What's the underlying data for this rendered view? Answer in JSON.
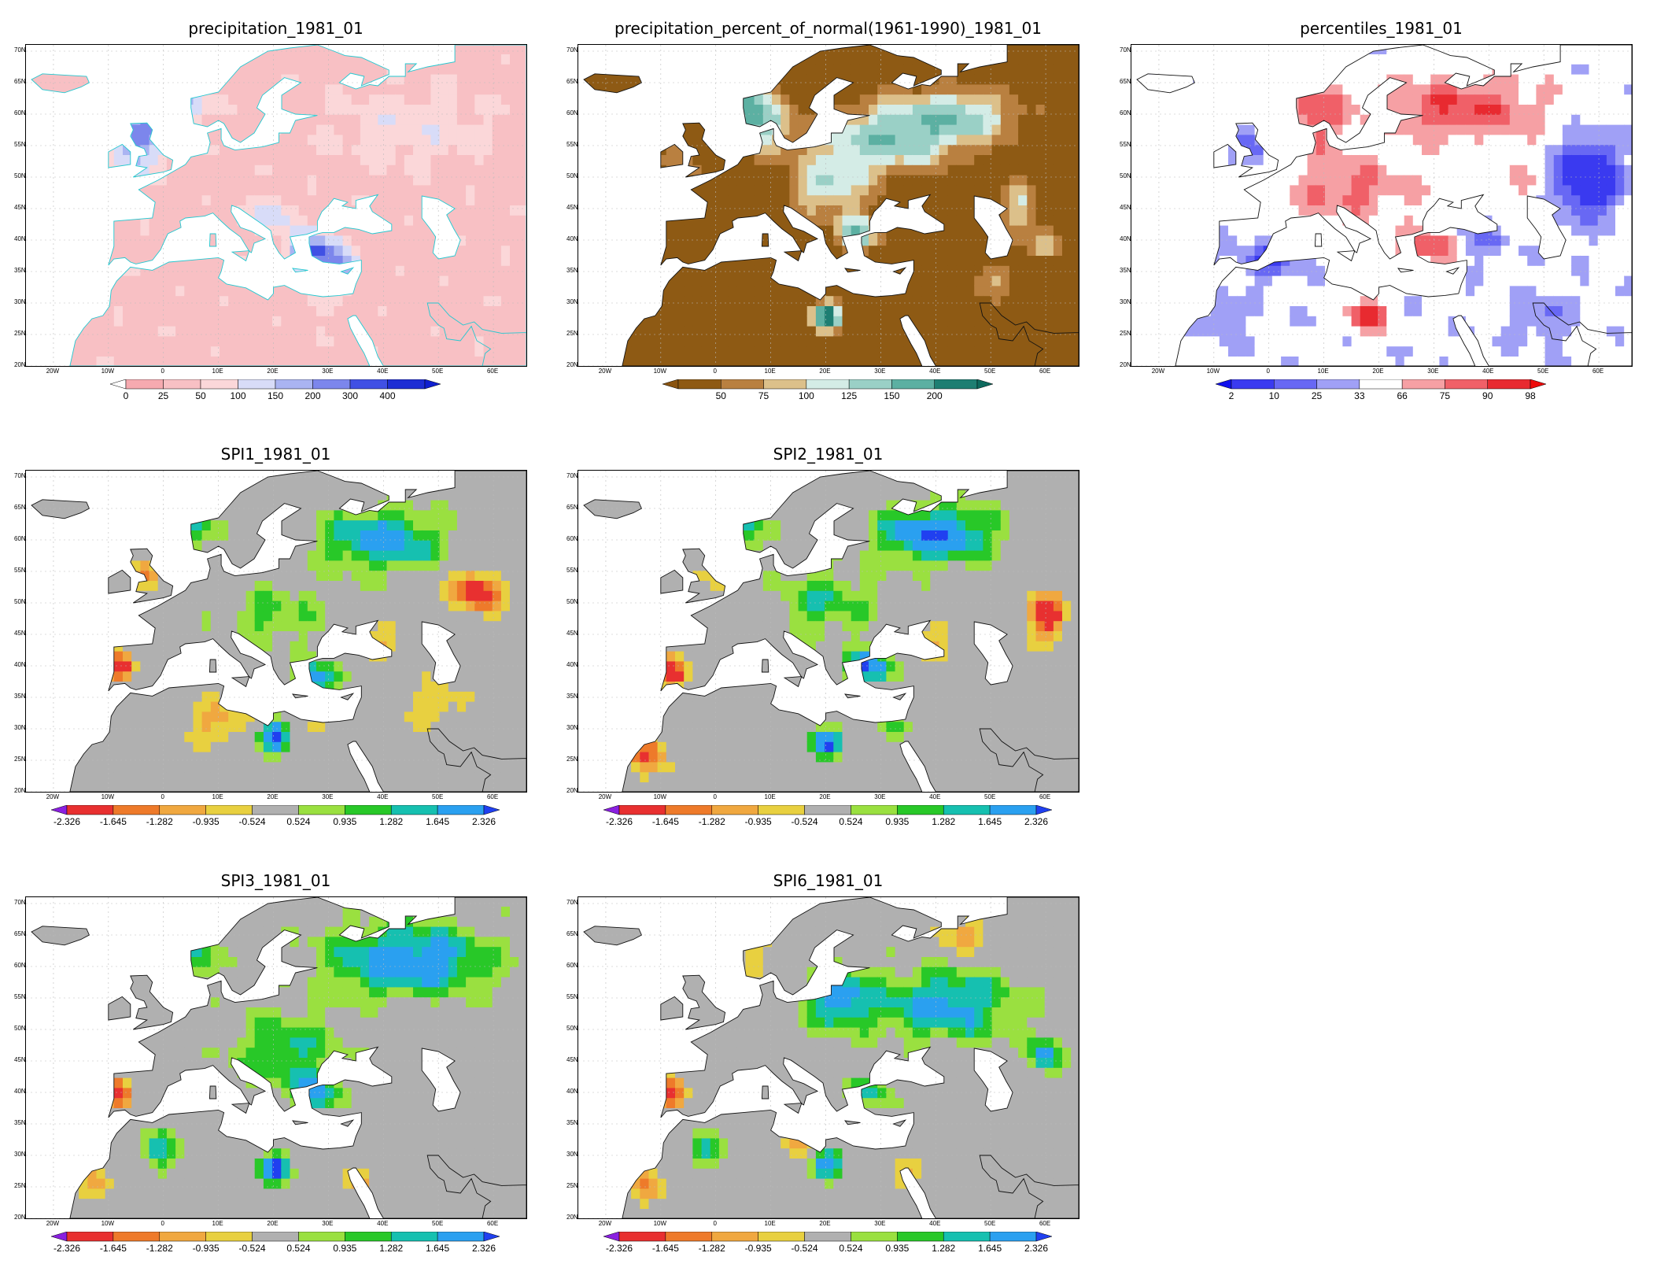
{
  "panels": [
    {
      "id": "precip",
      "title": "precipitation_1981_01",
      "scheme": "precip",
      "legend": {
        "labels": [
          "0",
          "25",
          "50",
          "100",
          "150",
          "200",
          "300",
          "400"
        ],
        "colors": [
          "#f6aab0",
          "#f8c0c4",
          "#fbd7d9",
          "#d8dcf8",
          "#aab4f2",
          "#7c86ec",
          "#4050e4",
          "#1e2ed4"
        ],
        "left_tri": "#ffffff",
        "right_tri": "#1020d0"
      }
    },
    {
      "id": "pnormal",
      "title": "precipitation_percent_of_normal(1961-1990)_1981_01",
      "scheme": "pnormal",
      "legend": {
        "labels": [
          "50",
          "75",
          "100",
          "125",
          "150",
          "200"
        ],
        "colors": [
          "#8e5a14",
          "#b98040",
          "#dcc08a",
          "#d4ece6",
          "#9ad0c6",
          "#5cb0a2",
          "#1e7e72"
        ],
        "left_tri": "#8a5410",
        "right_tri": "#0e6a5e"
      }
    },
    {
      "id": "pctl",
      "title": "percentiles_1981_01",
      "scheme": "pctl",
      "legend": {
        "labels": [
          "2",
          "10",
          "25",
          "33",
          "66",
          "75",
          "90",
          "98"
        ],
        "colors": [
          "#3a3af0",
          "#6868f4",
          "#a0a0f6",
          "#ffffff",
          "#f6a0a4",
          "#f06068",
          "#e82a30"
        ],
        "left_tri": "#1010ee",
        "right_tri": "#ee0a0a"
      }
    },
    {
      "id": "spi1",
      "title": "SPI1_1981_01",
      "scheme": "spi",
      "legend": {
        "labels": [
          "-2.326",
          "-1.645",
          "-1.282",
          "-0.935",
          "-0.524",
          "0.524",
          "0.935",
          "1.282",
          "1.645",
          "2.326"
        ],
        "colors": [
          "#e83030",
          "#ee7a2a",
          "#f0a840",
          "#e8d040",
          "#b0b0b0",
          "#9ae040",
          "#28c828",
          "#16c0b0",
          "#2aa0f0"
        ],
        "left_tri": "#8a20e0",
        "right_tri": "#2040f0"
      }
    },
    {
      "id": "spi2",
      "title": "SPI2_1981_01",
      "scheme": "spi",
      "legend": {
        "labels": [
          "-2.326",
          "-1.645",
          "-1.282",
          "-0.935",
          "-0.524",
          "0.524",
          "0.935",
          "1.282",
          "1.645",
          "2.326"
        ],
        "colors": [
          "#e83030",
          "#ee7a2a",
          "#f0a840",
          "#e8d040",
          "#b0b0b0",
          "#9ae040",
          "#28c828",
          "#16c0b0",
          "#2aa0f0"
        ],
        "left_tri": "#8a20e0",
        "right_tri": "#2040f0"
      }
    },
    {
      "id": "spi3",
      "title": "SPI3_1981_01",
      "scheme": "spi",
      "legend": {
        "labels": [
          "-2.326",
          "-1.645",
          "-1.282",
          "-0.935",
          "-0.524",
          "0.524",
          "0.935",
          "1.282",
          "1.645",
          "2.326"
        ],
        "colors": [
          "#e83030",
          "#ee7a2a",
          "#f0a840",
          "#e8d040",
          "#b0b0b0",
          "#9ae040",
          "#28c828",
          "#16c0b0",
          "#2aa0f0"
        ],
        "left_tri": "#8a20e0",
        "right_tri": "#2040f0"
      }
    },
    {
      "id": "spi6",
      "title": "SPI6_1981_01",
      "scheme": "spi",
      "legend": {
        "labels": [
          "-2.326",
          "-1.645",
          "-1.282",
          "-0.935",
          "-0.524",
          "0.524",
          "0.935",
          "1.282",
          "1.645",
          "2.326"
        ],
        "colors": [
          "#e83030",
          "#ee7a2a",
          "#f0a840",
          "#e8d040",
          "#b0b0b0",
          "#9ae040",
          "#28c828",
          "#16c0b0",
          "#2aa0f0"
        ],
        "left_tri": "#8a20e0",
        "right_tri": "#2040f0"
      }
    }
  ],
  "lat_labels": [
    "70N",
    "65N",
    "60N",
    "55N",
    "50N",
    "45N",
    "40N",
    "35N",
    "30N",
    "25N",
    "20N"
  ],
  "lon_labels": [
    "20W",
    "10W",
    "0",
    "10E",
    "20E",
    "30E",
    "40E",
    "50E",
    "60E"
  ]
}
